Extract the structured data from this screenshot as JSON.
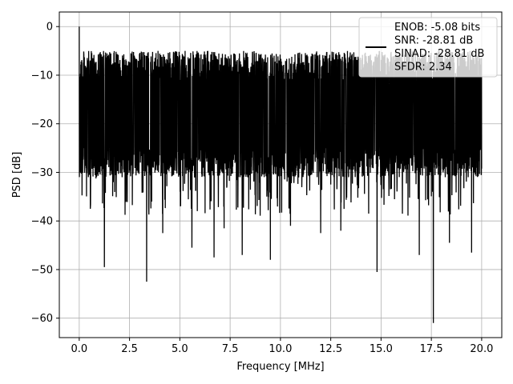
{
  "chart_data": {
    "type": "line",
    "title": "",
    "xlabel": "Frequency [MHz]",
    "ylabel": "PSD [dB]",
    "xlim": [
      -0.99,
      21.0
    ],
    "ylim": [
      -64.0,
      3.0
    ],
    "x_ticks": [
      0.0,
      2.5,
      5.0,
      7.5,
      10.0,
      12.5,
      15.0,
      17.5,
      20.0
    ],
    "x_tick_labels": [
      "0.0",
      "2.5",
      "5.0",
      "7.5",
      "10.0",
      "12.5",
      "15.0",
      "17.5",
      "20.0"
    ],
    "y_ticks": [
      0,
      -10,
      -20,
      -30,
      -40,
      -50,
      -60
    ],
    "y_tick_labels": [
      "0",
      "−10",
      "−20",
      "−30",
      "−40",
      "−50",
      "−60"
    ],
    "grid": true,
    "legend_position": "top-right",
    "legend_lines": [
      "ENOB: -5.08 bits",
      "SNR: -28.81 dB",
      "SINAD: -28.81 dB",
      "SFDR: 2.34"
    ],
    "line_color": "#000000",
    "series": [
      {
        "x_range": [
          0.0,
          20.0
        ],
        "noise_band_db": [
          -31,
          -5
        ],
        "peak": {
          "x": 0.0,
          "y": 0.0
        },
        "notable_dips": [
          {
            "x": 0.55,
            "y": -37.5
          },
          {
            "x": 1.25,
            "y": -49.5
          },
          {
            "x": 3.35,
            "y": -52.5
          },
          {
            "x": 4.15,
            "y": -42.5
          },
          {
            "x": 5.6,
            "y": -45.5
          },
          {
            "x": 6.7,
            "y": -47.5
          },
          {
            "x": 7.2,
            "y": -41.5
          },
          {
            "x": 8.1,
            "y": -47.0
          },
          {
            "x": 9.5,
            "y": -48.0
          },
          {
            "x": 10.5,
            "y": -41.0
          },
          {
            "x": 12.0,
            "y": -42.5
          },
          {
            "x": 13.0,
            "y": -42.0
          },
          {
            "x": 14.8,
            "y": -50.5
          },
          {
            "x": 16.9,
            "y": -47.0
          },
          {
            "x": 17.6,
            "y": -61.0
          },
          {
            "x": 18.4,
            "y": -44.5
          },
          {
            "x": 19.5,
            "y": -46.5
          }
        ]
      }
    ]
  }
}
